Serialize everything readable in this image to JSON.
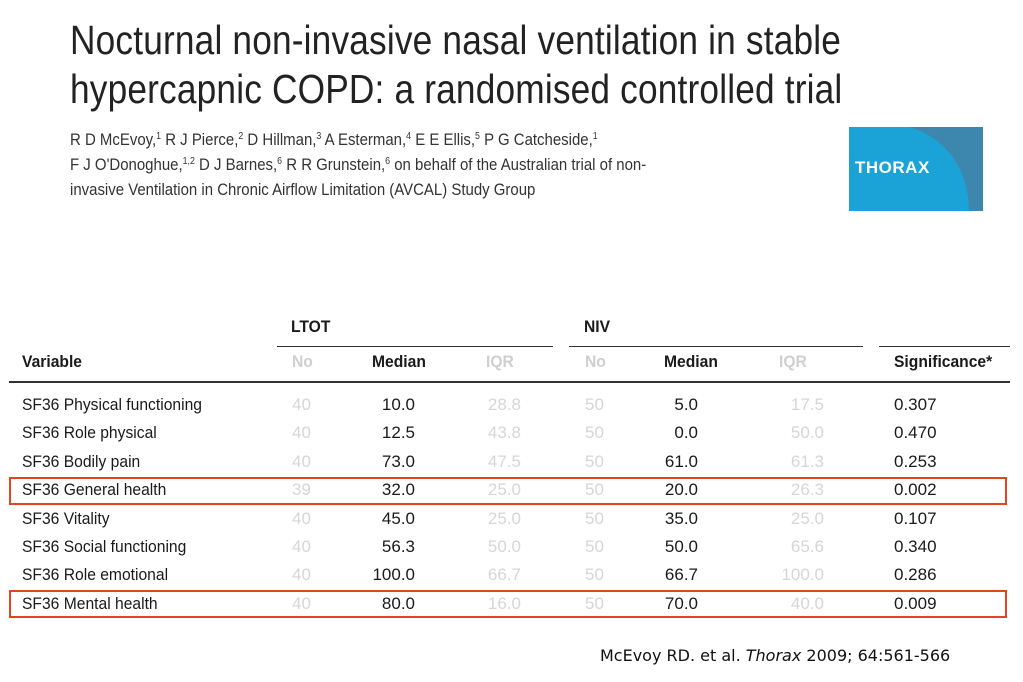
{
  "paper": {
    "title_line1": "Nocturnal non-invasive nasal ventilation in stable",
    "title_line2": "hypercapnic COPD: a randomised controlled trial",
    "authors_line3": "invasive Ventilation in Chronic Airflow Limitation (AVCAL) Study Group"
  },
  "logo": {
    "text": "THORAX"
  },
  "table": {
    "group_ltot": "LTOT",
    "group_niv": "NIV",
    "headers": {
      "variable": "Variable",
      "ltot_no": "No",
      "ltot_median": "Median",
      "ltot_iqr": "IQR",
      "niv_no": "No",
      "niv_median": "Median",
      "niv_iqr": "IQR",
      "significance": "Significance*"
    },
    "rows": [
      {
        "variable": "SF36 Physical functioning",
        "ltot_no": "40",
        "ltot_median": "10.0",
        "ltot_iqr": "28.8",
        "niv_no": "50",
        "niv_median": "5.0",
        "niv_iqr": "17.5",
        "significance": "0.307",
        "highlighted": false
      },
      {
        "variable": "SF36 Role physical",
        "ltot_no": "40",
        "ltot_median": "12.5",
        "ltot_iqr": "43.8",
        "niv_no": "50",
        "niv_median": "0.0",
        "niv_iqr": "50.0",
        "significance": "0.470",
        "highlighted": false
      },
      {
        "variable": "SF36 Bodily pain",
        "ltot_no": "40",
        "ltot_median": "73.0",
        "ltot_iqr": "47.5",
        "niv_no": "50",
        "niv_median": "61.0",
        "niv_iqr": "61.3",
        "significance": "0.253",
        "highlighted": false
      },
      {
        "variable": "SF36 General health",
        "ltot_no": "39",
        "ltot_median": "32.0",
        "ltot_iqr": "25.0",
        "niv_no": "50",
        "niv_median": "20.0",
        "niv_iqr": "26.3",
        "significance": "0.002",
        "highlighted": true
      },
      {
        "variable": "SF36 Vitality",
        "ltot_no": "40",
        "ltot_median": "45.0",
        "ltot_iqr": "25.0",
        "niv_no": "50",
        "niv_median": "35.0",
        "niv_iqr": "25.0",
        "significance": "0.107",
        "highlighted": false
      },
      {
        "variable": "SF36 Social functioning",
        "ltot_no": "40",
        "ltot_median": "56.3",
        "ltot_iqr": "50.0",
        "niv_no": "50",
        "niv_median": "50.0",
        "niv_iqr": "65.6",
        "significance": "0.340",
        "highlighted": false
      },
      {
        "variable": "SF36 Role emotional",
        "ltot_no": "40",
        "ltot_median": "100.0",
        "ltot_iqr": "66.7",
        "niv_no": "50",
        "niv_median": "66.7",
        "niv_iqr": "100.0",
        "significance": "0.286",
        "highlighted": false
      },
      {
        "variable": "SF36 Mental health",
        "ltot_no": "40",
        "ltot_median": "80.0",
        "ltot_iqr": "16.0",
        "niv_no": "50",
        "niv_median": "70.0",
        "niv_iqr": "40.0",
        "significance": "0.009",
        "highlighted": true
      }
    ]
  },
  "citation": {
    "authors": "McEvoy RD. et al.",
    "journal": "Thorax",
    "details": "2009; 64:561-566"
  },
  "colors": {
    "highlight_border": "#e2461f",
    "logo_bg": "#1ba3d8",
    "logo_curve": "#3d86ad",
    "faint_text": "#d6d6d6"
  }
}
